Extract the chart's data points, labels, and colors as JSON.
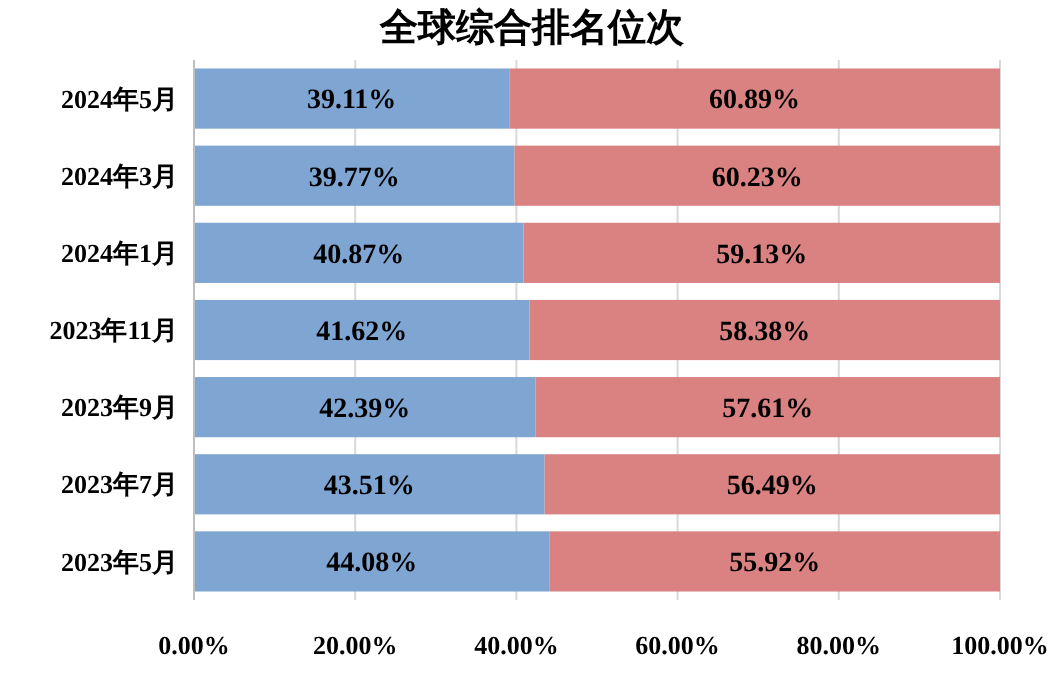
{
  "chart_data": {
    "type": "bar",
    "orientation": "horizontal",
    "stacked": true,
    "title": "全球综合排名位次",
    "categories": [
      "2024年5月",
      "2024年3月",
      "2024年1月",
      "2023年11月",
      "2023年9月",
      "2023年7月",
      "2023年5月"
    ],
    "series": [
      {
        "color": "#7fa5d2",
        "values": [
          39.11,
          39.77,
          40.87,
          41.62,
          42.39,
          43.51,
          44.08
        ],
        "value_labels": [
          "39.11%",
          "39.77%",
          "40.87%",
          "41.62%",
          "42.39%",
          "43.51%",
          "44.08%"
        ]
      },
      {
        "color": "#d98281",
        "values": [
          60.89,
          60.23,
          59.13,
          58.38,
          57.61,
          56.49,
          55.92
        ],
        "value_labels": [
          "60.89%",
          "60.23%",
          "59.13%",
          "58.38%",
          "57.61%",
          "56.49%",
          "55.92%"
        ]
      }
    ],
    "xlim": [
      0,
      100
    ],
    "xticks": [
      {
        "value": 0,
        "label": "0.00%"
      },
      {
        "value": 20,
        "label": "20.00%"
      },
      {
        "value": 40,
        "label": "40.00%"
      },
      {
        "value": 60,
        "label": "60.00%"
      },
      {
        "value": 80,
        "label": "80.00%"
      },
      {
        "value": 100,
        "label": "100.00%"
      }
    ],
    "grid": "x"
  }
}
